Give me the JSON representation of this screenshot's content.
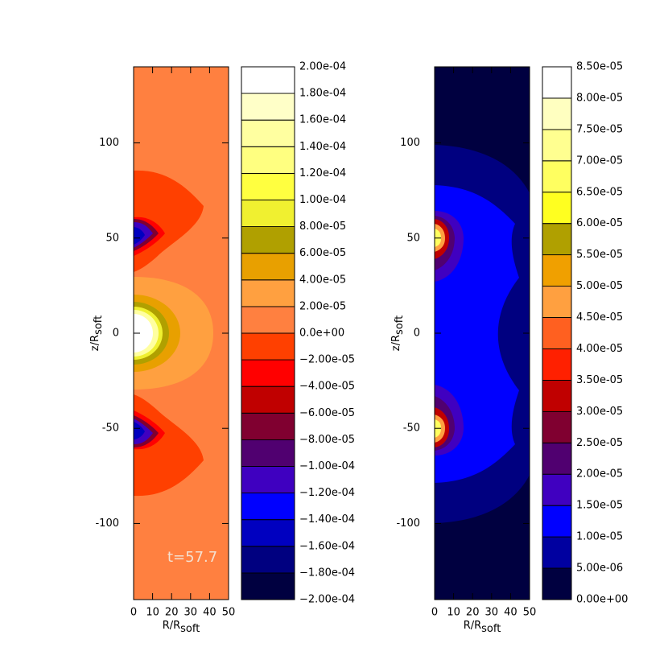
{
  "chart_data": [
    {
      "type": "contour",
      "xlabel": "R/R",
      "xlabel_sub": "soft",
      "ylabel": "z/R",
      "ylabel_sub": "soft",
      "xlim": [
        0,
        50
      ],
      "xticks": [
        0,
        10,
        20,
        30,
        40,
        50
      ],
      "ylim": [
        -140,
        140
      ],
      "yticks": [
        -100,
        -50,
        0,
        50,
        100
      ],
      "annotation": "t=57.7",
      "background": "#ff8040",
      "colorbar": {
        "levels": [
          {
            "value": -0.0002,
            "label": "−2.00e-04"
          },
          {
            "value": -0.00018,
            "label": "−1.80e-04"
          },
          {
            "value": -0.00016,
            "label": "−1.60e-04"
          },
          {
            "value": -0.00014,
            "label": "−1.40e-04"
          },
          {
            "value": -0.00012,
            "label": "−1.20e-04"
          },
          {
            "value": -0.0001,
            "label": "−1.00e-04"
          },
          {
            "value": -8e-05,
            "label": "−8.00e-05"
          },
          {
            "value": -6e-05,
            "label": "−6.00e-05"
          },
          {
            "value": -4e-05,
            "label": "−4.00e-05"
          },
          {
            "value": -2e-05,
            "label": "−2.00e-05"
          },
          {
            "value": 0,
            "label": "0.0e+00"
          },
          {
            "value": 2e-05,
            "label": "2.00e-05"
          },
          {
            "value": 4e-05,
            "label": "4.00e-05"
          },
          {
            "value": 6e-05,
            "label": "6.00e-05"
          },
          {
            "value": 8e-05,
            "label": "8.00e-05"
          },
          {
            "value": 0.0001,
            "label": "1.00e-04"
          },
          {
            "value": 0.00012,
            "label": "1.20e-04"
          },
          {
            "value": 0.00014,
            "label": "1.40e-04"
          },
          {
            "value": 0.00016,
            "label": "1.60e-04"
          },
          {
            "value": 0.00018,
            "label": "1.80e-04"
          },
          {
            "value": 0.0002,
            "label": "2.00e-04"
          }
        ],
        "colors": [
          "#000040",
          "#000080",
          "#0000c0",
          "#0000ff",
          "#3f00c0",
          "#500070",
          "#800030",
          "#c00000",
          "#ff0000",
          "#ff4000",
          "#ff8040",
          "#ffa040",
          "#e8a000",
          "#b0a000",
          "#f0f030",
          "#ffff40",
          "#ffff80",
          "#ffffa0",
          "#ffffc8",
          "#ffffff"
        ]
      }
    },
    {
      "type": "contour",
      "xlabel": "R/R",
      "xlabel_sub": "soft",
      "ylabel": "z/R",
      "ylabel_sub": "soft",
      "xlim": [
        0,
        50
      ],
      "xticks": [
        0,
        10,
        20,
        30,
        40,
        50
      ],
      "ylim": [
        -140,
        140
      ],
      "yticks": [
        -100,
        -50,
        0,
        50,
        100
      ],
      "background": "#000040",
      "colorbar": {
        "levels": [
          {
            "value": 0,
            "label": "0.00e+00"
          },
          {
            "value": 5e-06,
            "label": "5.00e-06"
          },
          {
            "value": 1e-05,
            "label": "1.00e-05"
          },
          {
            "value": 1.5e-05,
            "label": "1.50e-05"
          },
          {
            "value": 2e-05,
            "label": "2.00e-05"
          },
          {
            "value": 2.5e-05,
            "label": "2.50e-05"
          },
          {
            "value": 3e-05,
            "label": "3.00e-05"
          },
          {
            "value": 3.5e-05,
            "label": "3.50e-05"
          },
          {
            "value": 4e-05,
            "label": "4.00e-05"
          },
          {
            "value": 4.5e-05,
            "label": "4.50e-05"
          },
          {
            "value": 5e-05,
            "label": "5.00e-05"
          },
          {
            "value": 5.5e-05,
            "label": "5.50e-05"
          },
          {
            "value": 6e-05,
            "label": "6.00e-05"
          },
          {
            "value": 6.5e-05,
            "label": "6.50e-05"
          },
          {
            "value": 7e-05,
            "label": "7.00e-05"
          },
          {
            "value": 7.5e-05,
            "label": "7.50e-05"
          },
          {
            "value": 8e-05,
            "label": "8.00e-05"
          },
          {
            "value": 8.5e-05,
            "label": "8.50e-05"
          }
        ],
        "colors": [
          "#000040",
          "#0000a0",
          "#0000ff",
          "#4000c0",
          "#500070",
          "#800030",
          "#c00000",
          "#ff2000",
          "#ff6020",
          "#ffa040",
          "#f0a000",
          "#b0a000",
          "#ffff20",
          "#ffff60",
          "#ffff90",
          "#ffffc0",
          "#ffffff"
        ]
      }
    }
  ]
}
